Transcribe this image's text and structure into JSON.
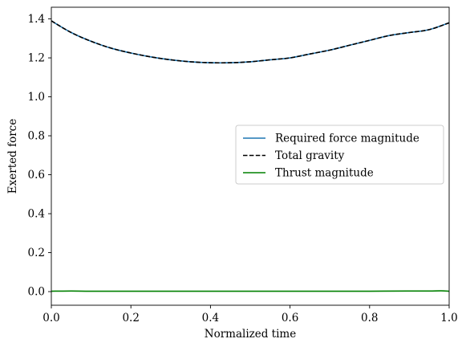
{
  "chart_data": {
    "type": "line",
    "title": "",
    "xlabel": "Normalized time",
    "ylabel": "Exerted force",
    "xlim": [
      0.0,
      1.0
    ],
    "ylim": [
      -0.07,
      1.46
    ],
    "xticks": [
      0.0,
      0.2,
      0.4,
      0.6,
      0.8,
      1.0
    ],
    "xtick_labels": [
      "0.0",
      "0.2",
      "0.4",
      "0.6",
      "0.8",
      "1.0"
    ],
    "yticks": [
      0.0,
      0.2,
      0.4,
      0.6,
      0.8,
      1.0,
      1.2,
      1.4
    ],
    "ytick_labels": [
      "0.0",
      "0.2",
      "0.4",
      "0.6",
      "0.8",
      "1.0",
      "1.2",
      "1.4"
    ],
    "grid": false,
    "legend_position": "center-right",
    "series": [
      {
        "name": "Required force magnitude",
        "color": "#1f77b4",
        "linestyle": "solid",
        "x": [
          0.0,
          0.05,
          0.1,
          0.15,
          0.2,
          0.25,
          0.3,
          0.35,
          0.4,
          0.45,
          0.5,
          0.55,
          0.6,
          0.65,
          0.7,
          0.75,
          0.8,
          0.85,
          0.9,
          0.95,
          1.0
        ],
        "y": [
          1.39,
          1.33,
          1.285,
          1.25,
          1.225,
          1.205,
          1.19,
          1.18,
          1.175,
          1.175,
          1.18,
          1.19,
          1.2,
          1.22,
          1.24,
          1.265,
          1.29,
          1.315,
          1.33,
          1.345,
          1.38
        ]
      },
      {
        "name": "Total gravity",
        "color": "#000000",
        "linestyle": "dashed",
        "x": [
          0.0,
          0.05,
          0.1,
          0.15,
          0.2,
          0.25,
          0.3,
          0.35,
          0.4,
          0.45,
          0.5,
          0.55,
          0.6,
          0.65,
          0.7,
          0.75,
          0.8,
          0.85,
          0.9,
          0.95,
          1.0
        ],
        "y": [
          1.39,
          1.33,
          1.285,
          1.25,
          1.225,
          1.205,
          1.19,
          1.18,
          1.175,
          1.175,
          1.18,
          1.19,
          1.2,
          1.22,
          1.24,
          1.265,
          1.29,
          1.315,
          1.33,
          1.345,
          1.38
        ]
      },
      {
        "name": "Thrust magnitude",
        "color": "#008000",
        "linestyle": "solid",
        "x": [
          0.0,
          0.05,
          0.1,
          0.2,
          0.3,
          0.4,
          0.5,
          0.6,
          0.7,
          0.8,
          0.9,
          0.95,
          0.98,
          1.0
        ],
        "y": [
          0.002,
          0.003,
          0.002,
          0.002,
          0.002,
          0.002,
          0.002,
          0.002,
          0.002,
          0.002,
          0.003,
          0.003,
          0.004,
          0.002
        ]
      }
    ]
  }
}
